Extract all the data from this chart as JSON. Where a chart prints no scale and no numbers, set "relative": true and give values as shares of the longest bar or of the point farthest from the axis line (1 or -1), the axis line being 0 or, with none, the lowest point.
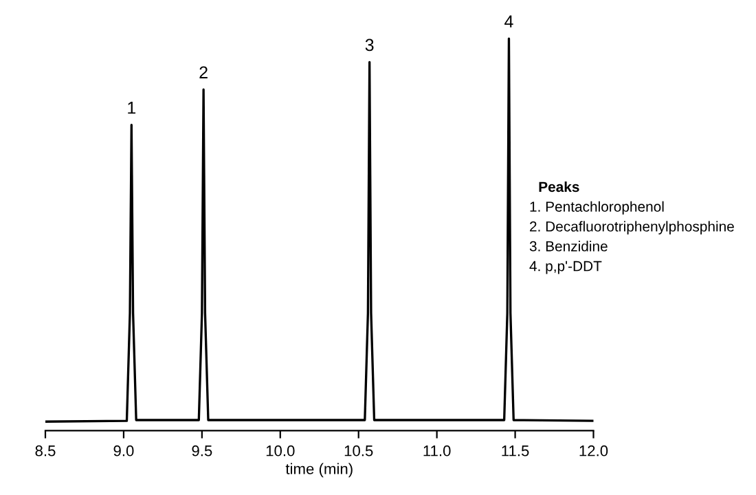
{
  "chart_data": {
    "type": "line",
    "relative": true,
    "xlabel": "time (min)",
    "color": "#000000",
    "xlim": [
      8.5,
      12.0
    ],
    "xticks": [
      {
        "value": 8.5,
        "label": "8.5"
      },
      {
        "value": 9.0,
        "label": "9.0"
      },
      {
        "value": 9.5,
        "label": "9.5"
      },
      {
        "value": 10.0,
        "label": "10.0"
      },
      {
        "value": 10.5,
        "label": "10.5"
      },
      {
        "value": 11.0,
        "label": "11.0"
      },
      {
        "value": 11.5,
        "label": "11.5"
      },
      {
        "value": 12.0,
        "label": "12.0"
      }
    ],
    "x": [
      8.5,
      9.02,
      9.04,
      9.05,
      9.06,
      9.08,
      9.48,
      9.5,
      9.51,
      9.52,
      9.54,
      10.54,
      10.56,
      10.57,
      10.58,
      10.6,
      11.43,
      11.45,
      11.46,
      11.47,
      11.49,
      12.0
    ],
    "values": [
      0.023,
      0.025,
      0.3,
      0.78,
      0.3,
      0.027,
      0.027,
      0.3,
      0.87,
      0.3,
      0.027,
      0.027,
      0.3,
      0.94,
      0.3,
      0.027,
      0.027,
      0.3,
      1.0,
      0.3,
      0.027,
      0.025
    ],
    "annotations": [
      {
        "text": "1",
        "x": 9.05,
        "y": 0.78
      },
      {
        "text": "2",
        "x": 9.51,
        "y": 0.87
      },
      {
        "text": "3",
        "x": 10.57,
        "y": 0.94
      },
      {
        "text": "4",
        "x": 11.46,
        "y": 1.0
      },
      "Peaks",
      "1. Pentachlorophenol",
      "2. Decafluorotriphenylphosphine",
      "3. Benzidine",
      "4. p,p'-DDT"
    ]
  }
}
